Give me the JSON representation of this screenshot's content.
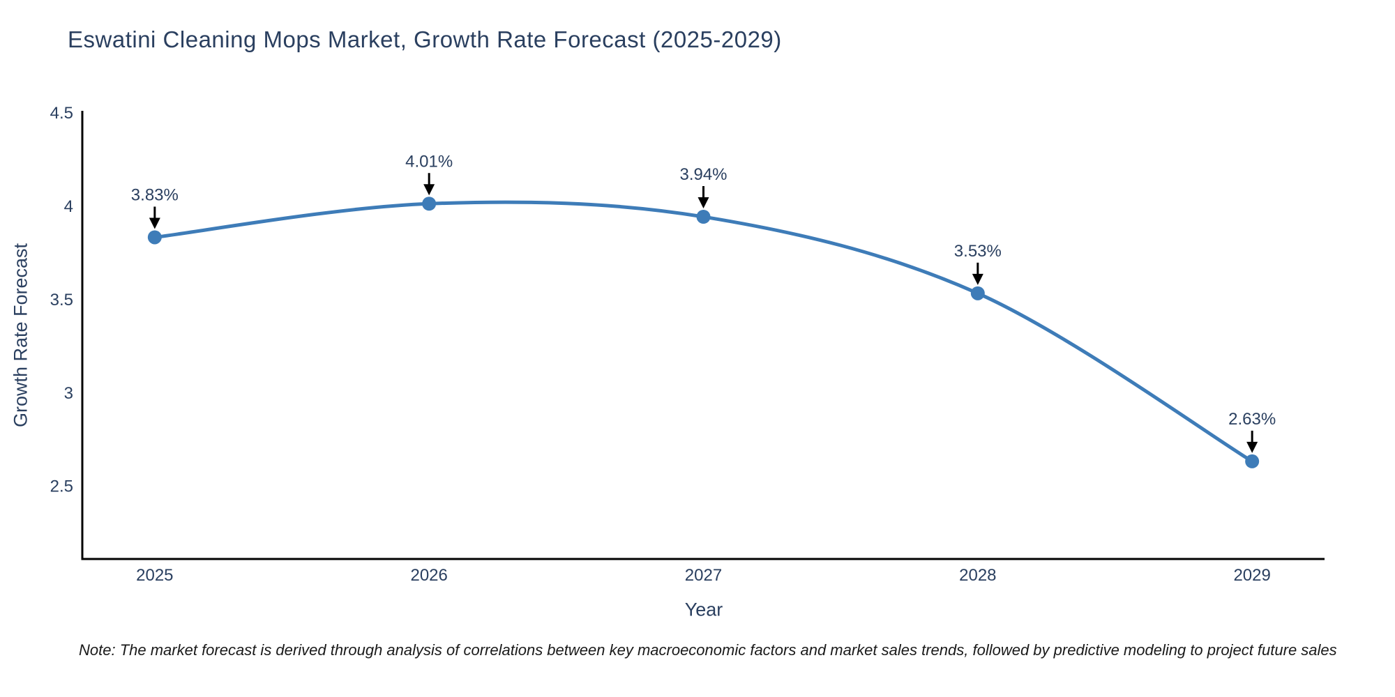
{
  "chart_data": {
    "type": "line",
    "title": "Eswatini Cleaning Mops Market, Growth Rate Forecast (2025-2029)",
    "xlabel": "Year",
    "ylabel": "Growth Rate Forecast",
    "x": [
      2025,
      2026,
      2027,
      2028,
      2029
    ],
    "values": [
      3.83,
      4.01,
      3.94,
      3.53,
      2.63
    ],
    "point_labels": [
      "3.83%",
      "4.01%",
      "3.94%",
      "3.53%",
      "2.63%"
    ],
    "x_tick_labels": [
      "2025",
      "2026",
      "2027",
      "2028",
      "2029"
    ],
    "y_ticks": [
      4.5,
      4,
      3.5,
      3,
      2.5
    ],
    "y_tick_labels": [
      "4.5",
      "4",
      "3.5",
      "3",
      "2.5"
    ],
    "xlim": [
      2024.736,
      2029.264
    ],
    "ylim": [
      2.107,
      4.5
    ],
    "grid": false,
    "legend": false,
    "line_shape": "spline",
    "line_color": "#3E7CB8",
    "marker_color": "#3E7CB8",
    "annotation_arrow_color": "#000000",
    "text_color": "#2a3f5f",
    "axis_color": "#000000"
  },
  "note": {
    "text": "Note: The market forecast is derived through analysis of correlations between key macroeconomic factors and market sales trends, followed by predictive modeling to project future sales"
  }
}
